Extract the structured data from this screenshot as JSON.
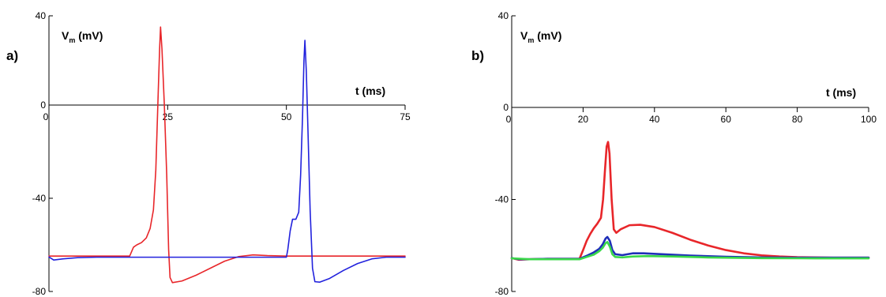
{
  "chart_data": [
    {
      "type": "line",
      "panel_label": "a)",
      "ylabel_main": "V",
      "ylabel_sub": "m",
      "ylabel_unit": " (mV)",
      "xlabel": "t (ms)",
      "xlim": [
        0,
        75
      ],
      "ylim": [
        -80,
        40
      ],
      "xticks": [
        "0",
        "25",
        "50",
        "75"
      ],
      "yticks": [
        "40",
        "0",
        "-40",
        "-80"
      ],
      "series": [
        {
          "color": "#e8262a",
          "points": [
            [
              0,
              -64.8
            ],
            [
              5,
              -64.8
            ],
            [
              10,
              -64.8
            ],
            [
              17,
              -64.8
            ],
            [
              17.8,
              -61
            ],
            [
              18.5,
              -60
            ],
            [
              19.5,
              -59
            ],
            [
              20.5,
              -57
            ],
            [
              21.3,
              -53
            ],
            [
              22,
              -45
            ],
            [
              22.5,
              -28
            ],
            [
              23,
              5
            ],
            [
              23.3,
              25
            ],
            [
              23.5,
              35
            ],
            [
              23.8,
              25
            ],
            [
              24.3,
              0
            ],
            [
              24.8,
              -30
            ],
            [
              25.2,
              -62
            ],
            [
              25.5,
              -74
            ],
            [
              26,
              -76.2
            ],
            [
              28,
              -75.5
            ],
            [
              31,
              -73
            ],
            [
              34,
              -70
            ],
            [
              37,
              -67
            ],
            [
              40,
              -65
            ],
            [
              43,
              -64.3
            ],
            [
              46,
              -64.6
            ],
            [
              50,
              -64.8
            ],
            [
              60,
              -64.8
            ],
            [
              75,
              -64.8
            ]
          ]
        },
        {
          "color": "#2222dd",
          "points": [
            [
              0,
              -65.2
            ],
            [
              1,
              -66.5
            ],
            [
              3,
              -66
            ],
            [
              6,
              -65.5
            ],
            [
              10,
              -65.3
            ],
            [
              20,
              -65.3
            ],
            [
              30,
              -65.3
            ],
            [
              40,
              -65.3
            ],
            [
              50,
              -65.3
            ],
            [
              50.3,
              -62
            ],
            [
              50.8,
              -54
            ],
            [
              51.3,
              -49
            ],
            [
              52,
              -49
            ],
            [
              52.6,
              -46
            ],
            [
              53,
              -30
            ],
            [
              53.4,
              -5
            ],
            [
              53.7,
              20
            ],
            [
              53.9,
              29
            ],
            [
              54.2,
              15
            ],
            [
              54.6,
              -15
            ],
            [
              55,
              -45
            ],
            [
              55.5,
              -70
            ],
            [
              56,
              -75.8
            ],
            [
              57,
              -76
            ],
            [
              59,
              -74.5
            ],
            [
              62,
              -71
            ],
            [
              65,
              -68
            ],
            [
              68,
              -66
            ],
            [
              71,
              -65.3
            ],
            [
              75,
              -65.3
            ]
          ]
        }
      ]
    },
    {
      "type": "line",
      "panel_label": "b)",
      "ylabel_main": "V",
      "ylabel_sub": "m",
      "ylabel_unit": " (mV)",
      "xlabel": "t (ms)",
      "xlim": [
        0,
        100
      ],
      "ylim": [
        -80,
        40
      ],
      "xticks": [
        "0",
        "20",
        "40",
        "60",
        "80",
        "100"
      ],
      "yticks": [
        "40",
        "0",
        "-40",
        "-80"
      ],
      "series": [
        {
          "color": "#e8262a",
          "points": [
            [
              0,
              -65.5
            ],
            [
              2,
              -66.2
            ],
            [
              5,
              -66
            ],
            [
              10,
              -65.8
            ],
            [
              15,
              -65.8
            ],
            [
              19,
              -65.8
            ],
            [
              20,
              -62
            ],
            [
              21,
              -58
            ],
            [
              22,
              -55
            ],
            [
              23,
              -52.5
            ],
            [
              24,
              -50.5
            ],
            [
              25,
              -48
            ],
            [
              25.6,
              -40
            ],
            [
              26.1,
              -28
            ],
            [
              26.6,
              -17
            ],
            [
              27,
              -15
            ],
            [
              27.4,
              -20
            ],
            [
              28,
              -40
            ],
            [
              28.6,
              -53
            ],
            [
              29.3,
              -54.5
            ],
            [
              30.5,
              -53
            ],
            [
              33,
              -51.2
            ],
            [
              36,
              -51
            ],
            [
              40,
              -52
            ],
            [
              45,
              -54.5
            ],
            [
              50,
              -57.5
            ],
            [
              55,
              -60
            ],
            [
              60,
              -62
            ],
            [
              65,
              -63.4
            ],
            [
              70,
              -64.3
            ],
            [
              75,
              -64.8
            ],
            [
              80,
              -65.1
            ],
            [
              90,
              -65.3
            ],
            [
              100,
              -65.3
            ]
          ]
        },
        {
          "color": "#1f2fb8",
          "points": [
            [
              0,
              -65.5
            ],
            [
              2,
              -66
            ],
            [
              5,
              -66
            ],
            [
              10,
              -65.8
            ],
            [
              19,
              -65.8
            ],
            [
              21,
              -64.5
            ],
            [
              23,
              -63
            ],
            [
              24.5,
              -61.5
            ],
            [
              25.5,
              -59.5
            ],
            [
              26.3,
              -57
            ],
            [
              26.8,
              -56.3
            ],
            [
              27.5,
              -58
            ],
            [
              28.2,
              -62
            ],
            [
              29,
              -63.8
            ],
            [
              31,
              -64.2
            ],
            [
              34,
              -63.4
            ],
            [
              37,
              -63.4
            ],
            [
              42,
              -63.8
            ],
            [
              50,
              -64.4
            ],
            [
              60,
              -64.9
            ],
            [
              70,
              -65.2
            ],
            [
              80,
              -65.3
            ],
            [
              100,
              -65.3
            ]
          ]
        },
        {
          "color": "#3ad84a",
          "points": [
            [
              0,
              -65.6
            ],
            [
              5,
              -66
            ],
            [
              10,
              -66
            ],
            [
              19,
              -66
            ],
            [
              21,
              -65
            ],
            [
              23,
              -64
            ],
            [
              24.5,
              -62.5
            ],
            [
              25.5,
              -61
            ],
            [
              26.3,
              -59
            ],
            [
              26.8,
              -58.5
            ],
            [
              27.5,
              -60.5
            ],
            [
              28.2,
              -63.8
            ],
            [
              29,
              -65
            ],
            [
              31,
              -65.2
            ],
            [
              34,
              -64.8
            ],
            [
              38,
              -64.6
            ],
            [
              45,
              -64.8
            ],
            [
              55,
              -65.2
            ],
            [
              70,
              -65.5
            ],
            [
              85,
              -65.6
            ],
            [
              100,
              -65.6
            ]
          ]
        }
      ]
    }
  ]
}
